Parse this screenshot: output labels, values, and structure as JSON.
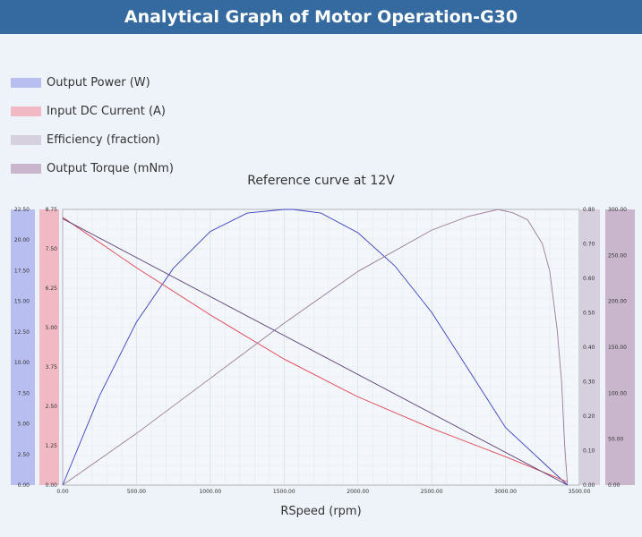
{
  "header": {
    "title": "Analytical Graph of Motor Operation-G30"
  },
  "legend": [
    {
      "label": "Output Power (W)",
      "color": "#b8bff0"
    },
    {
      "label": "Input DC Current (A)",
      "color": "#f0b9c3"
    },
    {
      "label": "Efficiency (fraction)",
      "color": "#d6cfdd"
    },
    {
      "label": "Output Torque (mNm)",
      "color": "#c9b6cc"
    }
  ],
  "chart_data": {
    "type": "line",
    "title": "",
    "subtitle": "Reference curve at 12V",
    "xlabel": "RSpeed (rpm)",
    "xlim": [
      0,
      3500
    ],
    "xticks": [
      "0.00",
      "500.00",
      "1000.00",
      "1500.00",
      "2000.00",
      "2500.00",
      "3000.00",
      "3500.00"
    ],
    "axes": {
      "power": {
        "range": [
          0,
          22.5
        ],
        "ticks": [
          "0.00",
          "2.50",
          "5.00",
          "7.50",
          "10.00",
          "12.50",
          "15.00",
          "17.50",
          "20.00",
          "22.50"
        ],
        "color": "#b8bff0"
      },
      "current": {
        "range": [
          0,
          8.75
        ],
        "ticks": [
          "0.00",
          "1.25",
          "2.50",
          "3.75",
          "5.00",
          "6.25",
          "7.50",
          "8.75"
        ],
        "color": "#f0b9c3"
      },
      "efficiency": {
        "range": [
          0,
          0.8
        ],
        "ticks": [
          "0.00",
          "0.10",
          "0.20",
          "0.30",
          "0.40",
          "0.50",
          "0.60",
          "0.70",
          "0.80"
        ],
        "color": "#d6cfdd"
      },
      "torque": {
        "range": [
          0,
          300
        ],
        "ticks": [
          "0.00",
          "50.00",
          "100.00",
          "150.00",
          "200.00",
          "250.00",
          "300.00"
        ],
        "color": "#c9b6cc"
      }
    },
    "series": [
      {
        "name": "Output Power (W)",
        "axis": "power",
        "color": "#3a3fc0",
        "x": [
          0,
          250,
          500,
          750,
          1000,
          1250,
          1500,
          1560,
          1750,
          2000,
          2250,
          2500,
          2750,
          3000,
          3250,
          3420
        ],
        "y": [
          0,
          7.3,
          13.3,
          17.7,
          20.7,
          22.2,
          22.5,
          22.5,
          22.2,
          20.6,
          17.9,
          14.1,
          9.4,
          4.7,
          1.9,
          0
        ]
      },
      {
        "name": "Input DC Current (A)",
        "axis": "current",
        "color": "#e04050",
        "x": [
          0,
          500,
          1000,
          1500,
          2000,
          2500,
          3000,
          3420
        ],
        "y": [
          8.5,
          6.9,
          5.4,
          4.0,
          2.8,
          1.8,
          0.9,
          0.1
        ]
      },
      {
        "name": "Efficiency (fraction)",
        "axis": "efficiency",
        "color": "#9a7a9a",
        "x": [
          0,
          500,
          1000,
          1500,
          2000,
          2500,
          2750,
          2950,
          3050,
          3150,
          3250,
          3300,
          3350,
          3380,
          3400,
          3420
        ],
        "y": [
          0,
          0.15,
          0.31,
          0.47,
          0.62,
          0.74,
          0.78,
          0.8,
          0.79,
          0.77,
          0.7,
          0.62,
          0.45,
          0.3,
          0.12,
          0
        ]
      },
      {
        "name": "Output Torque (mNm)",
        "axis": "torque",
        "color": "#5a3a78",
        "x": [
          0,
          3420
        ],
        "y": [
          290,
          0
        ]
      }
    ],
    "grid": true
  }
}
